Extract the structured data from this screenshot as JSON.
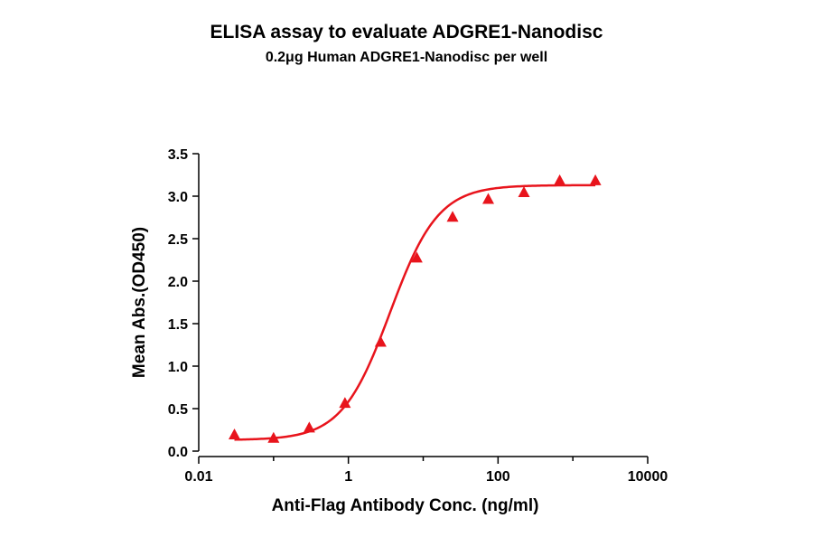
{
  "chart_data": {
    "type": "scatter",
    "title": "ELISA assay to evaluate ADGRE1-Nanodisc",
    "subtitle": "0.2μg Human ADGRE1-Nanodisc per well",
    "xlabel": "Anti-Flag Antibody Conc. (ng/ml)",
    "ylabel": "Mean Abs.(OD450)",
    "x_scale": "log",
    "xlim": [
      0.01,
      10000
    ],
    "ylim": [
      0,
      3.5
    ],
    "x_ticks": [
      "0.01",
      "1",
      "100",
      "10000"
    ],
    "y_ticks": [
      "0.0",
      "0.5",
      "1.0",
      "1.5",
      "2.0",
      "2.5",
      "3.0",
      "3.5"
    ],
    "grid": false,
    "series": [
      {
        "marker": "triangle",
        "color": "#e8141c",
        "x": [
          0.03,
          0.1,
          0.3,
          0.9,
          2.7,
          8.2,
          24.7,
          74,
          222,
          667,
          2000
        ],
        "y": [
          0.19,
          0.15,
          0.27,
          0.56,
          1.28,
          2.27,
          2.75,
          2.96,
          3.04,
          3.18,
          3.18
        ]
      }
    ],
    "fit_curve": {
      "type": "4PL",
      "color": "#e8141c",
      "bottom": 0.13,
      "top": 3.13,
      "ec50": 3.6,
      "hill": 1.35
    }
  }
}
